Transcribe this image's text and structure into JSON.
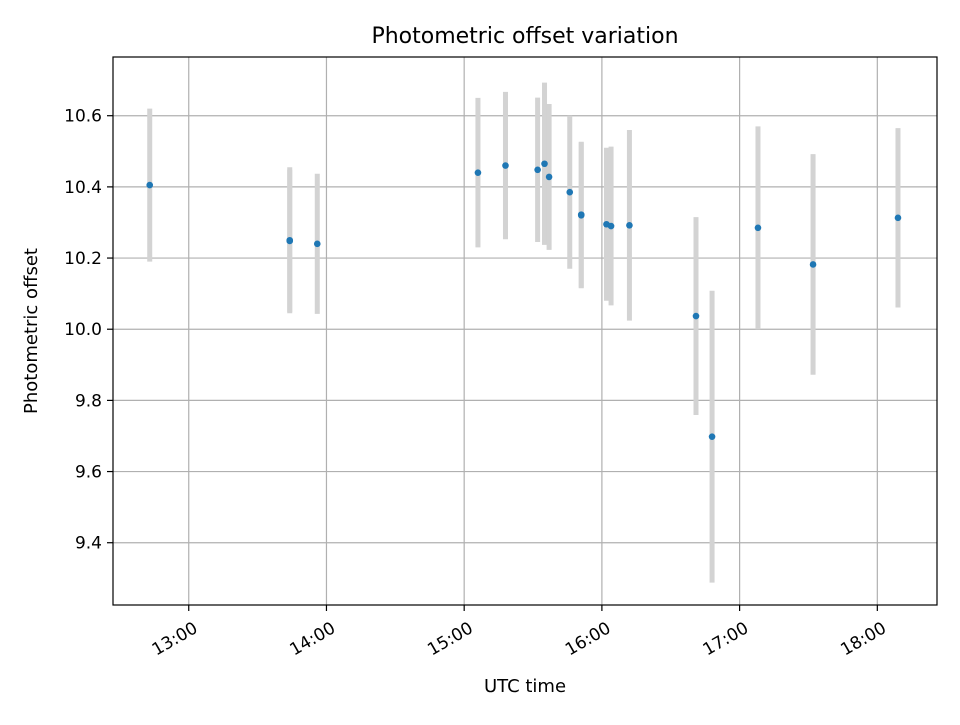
{
  "chart_data": {
    "type": "scatter",
    "title": "Photometric offset variation",
    "xlabel": "UTC time",
    "ylabel": "Photometric offset",
    "x_axis": "time",
    "xlim": [
      "12:27",
      "18:26"
    ],
    "ylim": [
      9.225,
      10.765
    ],
    "xticks": [
      "13:00",
      "14:00",
      "15:00",
      "16:00",
      "17:00",
      "18:00"
    ],
    "yticks": [
      "9.4",
      "9.6",
      "9.8",
      "10.0",
      "10.2",
      "10.4",
      "10.6"
    ],
    "grid": true,
    "legend": "none",
    "series": [
      {
        "marker_color": "#1f77b4",
        "errorbar_color": "#d3d3d3",
        "points": [
          {
            "x": "12:43",
            "y": 10.405,
            "err": 0.215
          },
          {
            "x": "13:44",
            "y": 10.25,
            "err": 0.205
          },
          {
            "x": "13:44",
            "y": 10.248,
            "err": 0.2
          },
          {
            "x": "13:56",
            "y": 10.24,
            "err": 0.197
          },
          {
            "x": "15:06",
            "y": 10.44,
            "err": 0.21
          },
          {
            "x": "15:18",
            "y": 10.46,
            "err": 0.207
          },
          {
            "x": "15:32",
            "y": 10.448,
            "err": 0.203
          },
          {
            "x": "15:35",
            "y": 10.465,
            "err": 0.228
          },
          {
            "x": "15:37",
            "y": 10.428,
            "err": 0.205
          },
          {
            "x": "15:46",
            "y": 10.385,
            "err": 0.215
          },
          {
            "x": "15:51",
            "y": 10.322,
            "err": 0.205
          },
          {
            "x": "15:51",
            "y": 10.32,
            "err": 0.205
          },
          {
            "x": "16:02",
            "y": 10.295,
            "err": 0.215
          },
          {
            "x": "16:04",
            "y": 10.29,
            "err": 0.223
          },
          {
            "x": "16:12",
            "y": 10.292,
            "err": 0.268
          },
          {
            "x": "16:41",
            "y": 10.037,
            "err": 0.278
          },
          {
            "x": "16:48",
            "y": 9.698,
            "err": 0.41
          },
          {
            "x": "17:08",
            "y": 10.285,
            "err": 0.285
          },
          {
            "x": "17:32",
            "y": 10.182,
            "err": 0.31
          },
          {
            "x": "18:09",
            "y": 10.313,
            "err": 0.252
          }
        ]
      }
    ]
  }
}
